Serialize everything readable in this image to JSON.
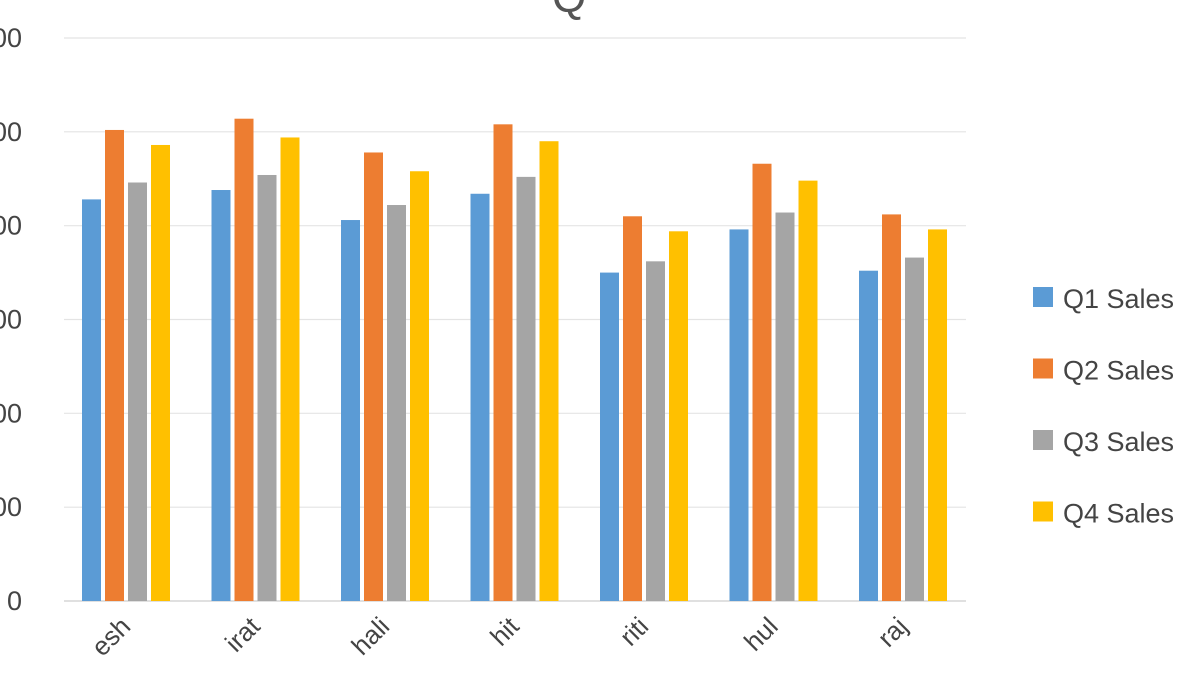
{
  "chart_data": {
    "type": "bar",
    "title": "Q",
    "yticks": [
      "0",
      "00",
      "00",
      "00",
      "00",
      "00",
      "00"
    ],
    "ylim": [
      0,
      300
    ],
    "ytick_step": 50,
    "grid": true,
    "legend_position": "right",
    "categories": [
      "esh",
      "irat",
      "hali",
      "hit",
      "riti",
      "hul",
      "raj"
    ],
    "series": [
      {
        "name": "Q1 Sales",
        "color": "#5b9bd5",
        "values": [
          214,
          219,
          203,
          217,
          175,
          198,
          176
        ]
      },
      {
        "name": "Q2 Sales",
        "color": "#ed7d31",
        "values": [
          251,
          257,
          239,
          254,
          205,
          233,
          206
        ]
      },
      {
        "name": "Q3 Sales",
        "color": "#a5a5a5",
        "values": [
          223,
          227,
          211,
          226,
          181,
          207,
          183
        ]
      },
      {
        "name": "Q4 Sales",
        "color": "#ffc000",
        "values": [
          243,
          247,
          229,
          245,
          197,
          224,
          198
        ]
      }
    ]
  }
}
